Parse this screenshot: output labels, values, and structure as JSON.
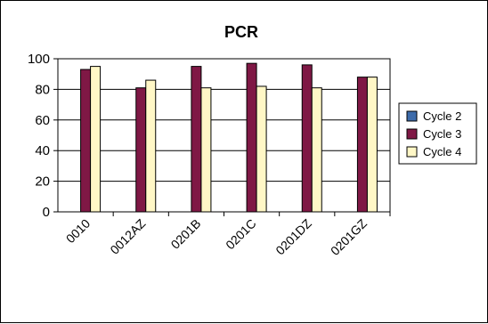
{
  "chart_data": {
    "type": "bar",
    "title": "PCR",
    "categories": [
      "0010",
      "0012AZ",
      "0201B",
      "0201C",
      "0201DZ",
      "0201GZ"
    ],
    "series": [
      {
        "name": "Cycle 2",
        "color": "#3D6BAA",
        "values": [
          null,
          null,
          null,
          null,
          null,
          null
        ]
      },
      {
        "name": "Cycle 3",
        "color": "#7F1845",
        "values": [
          93,
          81,
          95,
          97,
          96,
          88
        ]
      },
      {
        "name": "Cycle 4",
        "color": "#FFF7C6",
        "values": [
          95,
          86,
          81,
          82,
          81,
          88
        ]
      }
    ],
    "yticks": [
      0,
      20,
      40,
      60,
      80,
      100
    ],
    "ylim": [
      0,
      100
    ],
    "grid": true,
    "legend_position": "right"
  }
}
